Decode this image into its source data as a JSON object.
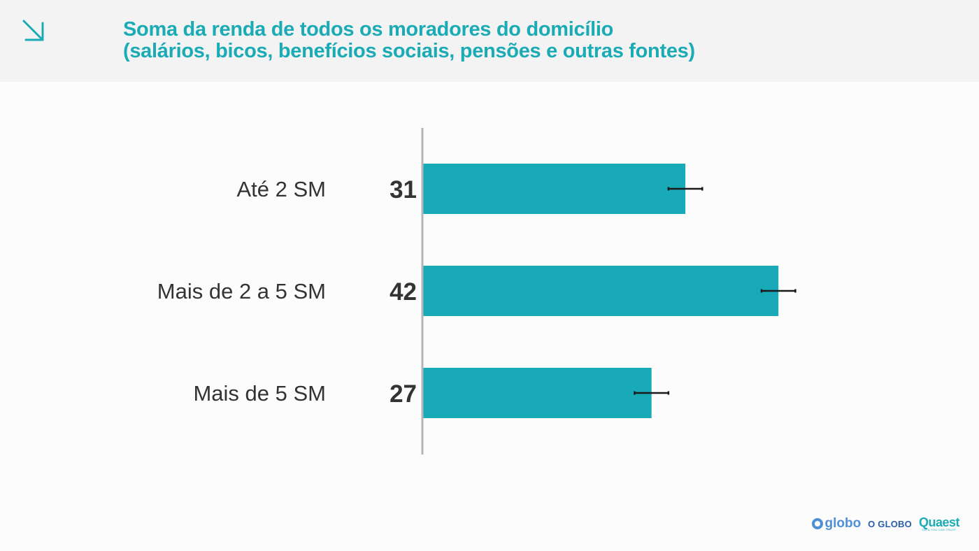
{
  "header": {
    "title_line1": "Soma da renda de todos os moradores do domicílio",
    "title_line2": "(salários, bicos, benefícios sociais, pensões e outras fontes)",
    "icon": "arrow-down-right-icon"
  },
  "colors": {
    "accent": "#1aabb5",
    "bar": "#18aab7",
    "text": "#333333",
    "axis": "#b5b5b5",
    "error_bar": "#1a1a1a"
  },
  "chart_data": {
    "type": "bar",
    "orientation": "horizontal",
    "categories": [
      "Até 2 SM",
      "Mais de 2 a 5 SM",
      "Mais de 5 SM"
    ],
    "values": [
      31,
      42,
      27
    ],
    "value_labels": [
      "31",
      "42",
      "27"
    ],
    "error_margin": 2,
    "xlim": [
      0,
      50
    ],
    "grid": false,
    "legend": "none"
  },
  "footer": {
    "logo_globo": "globo",
    "logo_oglobo": "O GLOBO",
    "logo_quaest": "Quaest",
    "logo_quaest_tagline": "DATA YOU CAN TRUST"
  }
}
